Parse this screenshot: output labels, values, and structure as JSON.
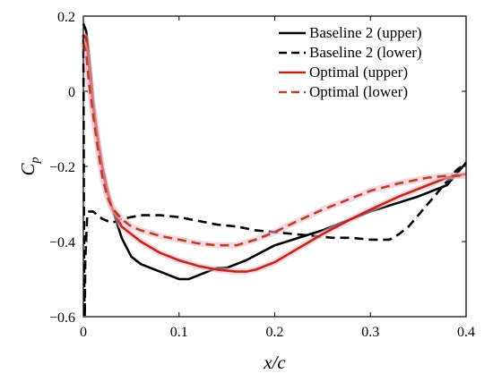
{
  "chart_data": {
    "type": "line",
    "xlabel": "x/c",
    "ylabel": "C_p",
    "xlim": [
      0,
      0.4
    ],
    "ylim": [
      -0.6,
      0.2
    ],
    "xticks": [
      0,
      0.1,
      0.2,
      0.3,
      0.4
    ],
    "xtick_labels": [
      "0",
      "0.1",
      "0.2",
      "0.3",
      "0.4"
    ],
    "yticks": [
      -0.6,
      -0.4,
      -0.2,
      0,
      0.2
    ],
    "ytick_labels": [
      "−0.6",
      "−0.4",
      "−0.2",
      "0",
      "0.2"
    ],
    "grid": false,
    "legend_position": "top-right",
    "series": [
      {
        "name": "Baseline 2 (upper)",
        "color": "#000000",
        "dash": "solid",
        "x": [
          0.0,
          0.003,
          0.006,
          0.01,
          0.015,
          0.02,
          0.025,
          0.03,
          0.035,
          0.04,
          0.05,
          0.06,
          0.07,
          0.08,
          0.09,
          0.1,
          0.11,
          0.12,
          0.13,
          0.14,
          0.15,
          0.16,
          0.17,
          0.2,
          0.25,
          0.3,
          0.35,
          0.38,
          0.4
        ],
        "y": [
          0.18,
          0.16,
          0.09,
          -0.02,
          -0.12,
          -0.2,
          -0.26,
          -0.31,
          -0.35,
          -0.39,
          -0.44,
          -0.46,
          -0.47,
          -0.48,
          -0.49,
          -0.5,
          -0.5,
          -0.49,
          -0.48,
          -0.47,
          -0.47,
          -0.46,
          -0.45,
          -0.41,
          -0.37,
          -0.32,
          -0.28,
          -0.25,
          -0.19
        ]
      },
      {
        "name": "Baseline 2 (lower)",
        "color": "#000000",
        "dash": "dashed",
        "x": [
          0.0,
          0.0003,
          0.0006,
          0.001,
          0.0015,
          0.002,
          0.004,
          0.006,
          0.01,
          0.02,
          0.03,
          0.04,
          0.05,
          0.06,
          0.07,
          0.08,
          0.1,
          0.12,
          0.14,
          0.16,
          0.18,
          0.2,
          0.22,
          0.24,
          0.26,
          0.28,
          0.3,
          0.32,
          0.33,
          0.34,
          0.35,
          0.36,
          0.37,
          0.38,
          0.39,
          0.4
        ],
        "y": [
          0.15,
          -0.05,
          -0.3,
          -0.55,
          -0.6,
          -0.45,
          -0.33,
          -0.32,
          -0.32,
          -0.34,
          -0.35,
          -0.34,
          -0.335,
          -0.33,
          -0.33,
          -0.33,
          -0.335,
          -0.345,
          -0.355,
          -0.36,
          -0.37,
          -0.375,
          -0.38,
          -0.385,
          -0.39,
          -0.39,
          -0.395,
          -0.395,
          -0.38,
          -0.36,
          -0.33,
          -0.3,
          -0.27,
          -0.24,
          -0.21,
          -0.19
        ]
      },
      {
        "name": "Optimal (upper)",
        "color": "#c0281c",
        "dash": "solid",
        "x": [
          0.0,
          0.003,
          0.006,
          0.01,
          0.015,
          0.02,
          0.025,
          0.03,
          0.04,
          0.05,
          0.06,
          0.08,
          0.1,
          0.12,
          0.14,
          0.16,
          0.17,
          0.18,
          0.2,
          0.22,
          0.25,
          0.28,
          0.3,
          0.33,
          0.36,
          0.38,
          0.4
        ],
        "y": [
          0.15,
          0.14,
          0.06,
          -0.04,
          -0.13,
          -0.21,
          -0.27,
          -0.31,
          -0.36,
          -0.38,
          -0.4,
          -0.43,
          -0.45,
          -0.465,
          -0.475,
          -0.48,
          -0.48,
          -0.475,
          -0.455,
          -0.425,
          -0.38,
          -0.34,
          -0.315,
          -0.28,
          -0.25,
          -0.23,
          -0.22
        ]
      },
      {
        "name": "Optimal (lower)",
        "color": "#b3442c",
        "dash": "dashed",
        "x": [
          0.0,
          0.003,
          0.006,
          0.01,
          0.015,
          0.02,
          0.025,
          0.03,
          0.04,
          0.05,
          0.06,
          0.08,
          0.1,
          0.12,
          0.14,
          0.16,
          0.18,
          0.2,
          0.22,
          0.25,
          0.28,
          0.3,
          0.33,
          0.36,
          0.38,
          0.4
        ],
        "y": [
          0.13,
          0.1,
          0.02,
          -0.06,
          -0.15,
          -0.23,
          -0.28,
          -0.31,
          -0.34,
          -0.36,
          -0.37,
          -0.385,
          -0.395,
          -0.405,
          -0.41,
          -0.41,
          -0.395,
          -0.375,
          -0.35,
          -0.315,
          -0.285,
          -0.265,
          -0.245,
          -0.23,
          -0.225,
          -0.225
        ]
      }
    ]
  }
}
